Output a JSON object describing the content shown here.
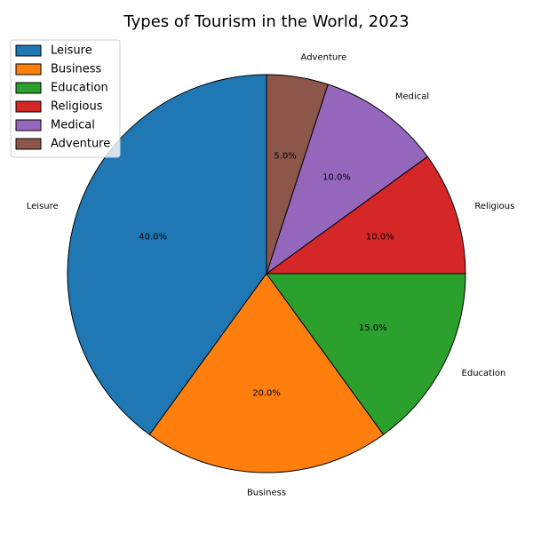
{
  "chart_data": {
    "type": "pie",
    "title": "Types of Tourism in the World, 2023",
    "categories": [
      "Leisure",
      "Business",
      "Education",
      "Religious",
      "Medical",
      "Adventure"
    ],
    "values": [
      40.0,
      20.0,
      15.0,
      10.0,
      10.0,
      5.0
    ],
    "percent_labels": [
      "40.0%",
      "20.0%",
      "15.0%",
      "10.0%",
      "10.0%",
      "5.0%"
    ],
    "colors": [
      "#1f77b4",
      "#ff7f0e",
      "#2ca02c",
      "#d62728",
      "#9467bd",
      "#8c564b"
    ],
    "start_angle_deg": 90,
    "direction": "counterclockwise",
    "legend": {
      "placement": "top-left",
      "entries": [
        "Leisure",
        "Business",
        "Education",
        "Religious",
        "Medical",
        "Adventure"
      ]
    }
  }
}
